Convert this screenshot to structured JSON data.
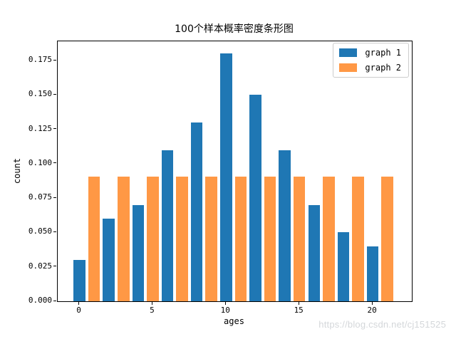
{
  "chart_data": {
    "type": "bar",
    "title": "100个样本概率密度条形图",
    "xlabel": "ages",
    "ylabel": "count",
    "xlim": [
      -1.48,
      22.67
    ],
    "ylim": [
      0,
      0.189
    ],
    "bar_width": 0.8,
    "grid": false,
    "legend_position": "upper right",
    "x_ticks": [
      {
        "value": 0,
        "label": "0"
      },
      {
        "value": 5,
        "label": "5"
      },
      {
        "value": 10,
        "label": "10"
      },
      {
        "value": 15,
        "label": "15"
      },
      {
        "value": 20,
        "label": "20"
      }
    ],
    "y_ticks": [
      {
        "value": 0.0,
        "label": "0.000"
      },
      {
        "value": 0.025,
        "label": "0.025"
      },
      {
        "value": 0.05,
        "label": "0.050"
      },
      {
        "value": 0.075,
        "label": "0.075"
      },
      {
        "value": 0.1,
        "label": "0.100"
      },
      {
        "value": 0.125,
        "label": "0.125"
      },
      {
        "value": 0.15,
        "label": "0.150"
      },
      {
        "value": 0.175,
        "label": "0.175"
      }
    ],
    "series": [
      {
        "name": "graph 1",
        "color": "#1f77b4",
        "x": [
          0,
          2,
          4,
          6,
          8,
          10,
          12,
          14,
          16,
          18,
          20
        ],
        "values": [
          0.03,
          0.06,
          0.07,
          0.11,
          0.13,
          0.18,
          0.15,
          0.11,
          0.07,
          0.05,
          0.04
        ]
      },
      {
        "name": "graph 2",
        "color": "#ff9845",
        "x": [
          1,
          3,
          5,
          7,
          9,
          11,
          13,
          15,
          17,
          19,
          21
        ],
        "values": [
          0.0909,
          0.0909,
          0.0909,
          0.0909,
          0.0909,
          0.0909,
          0.0909,
          0.0909,
          0.0909,
          0.0909,
          0.0909
        ]
      }
    ]
  },
  "watermark": {
    "text": "https://blog.csdn.net/cj151525",
    "color": "#d4d7da"
  }
}
